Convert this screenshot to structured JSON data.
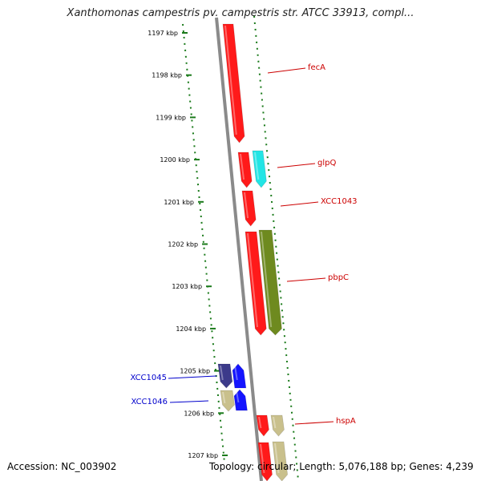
{
  "title": "Xanthomonas campestris pv. campestris str. ATCC 33913, compl...",
  "footer": {
    "accession": "Accession: NC_003902",
    "summary": "Topology: circular; Length: 5,076,188 bp; Genes: 4,239"
  },
  "colors": {
    "genome_line": "#8a8a8a",
    "track_dots": "#1a7a1a",
    "label_right": "#cc0000",
    "label_left": "#0000cc",
    "gene_red": "#ff1a1a",
    "gene_cyan": "#22e5e5",
    "gene_olive": "#6e8a1f",
    "gene_navy": "#3c3a8a",
    "gene_blue": "#1414ff",
    "gene_khaki": "#c9c08c"
  },
  "ticks": [
    {
      "label": "1197 kbp"
    },
    {
      "label": "1198 kbp"
    },
    {
      "label": "1199 kbp"
    },
    {
      "label": "1200 kbp"
    },
    {
      "label": "1201 kbp"
    },
    {
      "label": "1202 kbp"
    },
    {
      "label": "1203 kbp"
    },
    {
      "label": "1204 kbp"
    },
    {
      "label": "1205 kbp"
    },
    {
      "label": "1206 kbp"
    },
    {
      "label": "1207 kbp"
    }
  ],
  "labels": [
    {
      "name": "fecA",
      "side": "right"
    },
    {
      "name": "glpQ",
      "side": "right"
    },
    {
      "name": "XCC1043",
      "side": "right"
    },
    {
      "name": "pbpC",
      "side": "right"
    },
    {
      "name": "hspA",
      "side": "right"
    },
    {
      "name": "XCC1045",
      "side": "left"
    },
    {
      "name": "XCC1046",
      "side": "left"
    }
  ]
}
